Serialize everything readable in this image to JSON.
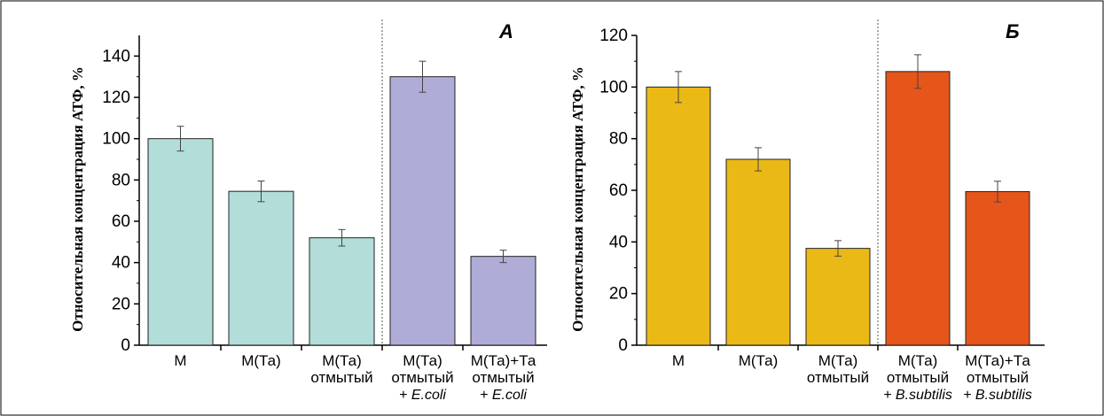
{
  "chart_data": [
    {
      "type": "bar",
      "panel_label": "А",
      "ylabel": "Относительная концентрация АТФ, %",
      "ylim": [
        0,
        150
      ],
      "yticks": [
        0,
        20,
        40,
        60,
        80,
        100,
        120,
        140
      ],
      "categories": [
        [
          "М"
        ],
        [
          "М(Та)"
        ],
        [
          "М(Та)",
          "отмытый"
        ],
        [
          "М(Та)",
          "отмытый",
          "+ E.coli"
        ],
        [
          "М(Та)+Та",
          "отмытый",
          "+ E.coli"
        ]
      ],
      "values": [
        100,
        74.5,
        52,
        130,
        43
      ],
      "errors": [
        6,
        5,
        4,
        7.5,
        3
      ],
      "colors": [
        "#b3ddd9",
        "#b3ddd9",
        "#b3ddd9",
        "#b0acd8",
        "#b0acd8"
      ],
      "divider_after_index": 2
    },
    {
      "type": "bar",
      "panel_label": "Б",
      "ylabel": "Относительная концентрация АТФ, %",
      "ylim": [
        0,
        120
      ],
      "yticks": [
        0,
        20,
        40,
        60,
        80,
        100,
        120
      ],
      "categories": [
        [
          "М"
        ],
        [
          "М(Та)"
        ],
        [
          "М(Та)",
          "отмытый"
        ],
        [
          "М(Та)",
          "отмытый",
          "+ B.subtilis"
        ],
        [
          "М(Та)+Та",
          "отмытый",
          "+ B.subtilis"
        ]
      ],
      "values": [
        100,
        72,
        37.5,
        106,
        59.5
      ],
      "errors": [
        6,
        4.5,
        3,
        6.5,
        4
      ],
      "colors": [
        "#ebb916",
        "#ebb916",
        "#ebb916",
        "#e65519",
        "#e65519"
      ],
      "divider_after_index": 2
    }
  ]
}
